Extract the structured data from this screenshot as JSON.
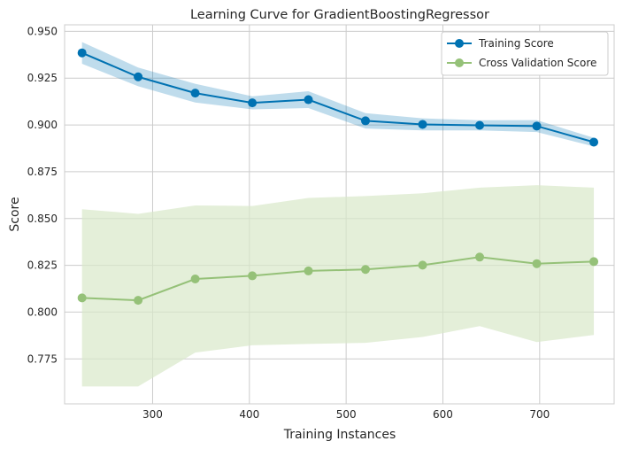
{
  "chart_data": {
    "type": "line",
    "title": "Learning Curve for GradientBoostingRegressor",
    "xlabel": "Training Instances",
    "ylabel": "Score",
    "xlim": [
      209,
      777
    ],
    "ylim": [
      0.751,
      0.9535
    ],
    "xticks": [
      300,
      400,
      500,
      600,
      700
    ],
    "yticks": [
      0.775,
      0.8,
      0.825,
      0.85,
      0.875,
      0.9,
      0.925,
      0.95
    ],
    "ytick_labels": [
      "0.775",
      "0.800",
      "0.825",
      "0.850",
      "0.875",
      "0.900",
      "0.925",
      "0.950"
    ],
    "grid": true,
    "legend_position": "top-right",
    "x": [
      227,
      285,
      344,
      403,
      461,
      520,
      579,
      638,
      697,
      756
    ],
    "series": [
      {
        "name": "Training Score",
        "color": "#0072b2",
        "band_color": "#0072b2",
        "values": [
          0.9385,
          0.9257,
          0.917,
          0.9118,
          0.9135,
          0.9022,
          0.9003,
          0.8998,
          0.8994,
          0.8908
        ],
        "upper": [
          0.9443,
          0.9307,
          0.922,
          0.9153,
          0.918,
          0.9063,
          0.9035,
          0.9025,
          0.9026,
          0.8931
        ],
        "lower": [
          0.9327,
          0.9207,
          0.912,
          0.9083,
          0.909,
          0.8981,
          0.8971,
          0.8971,
          0.8962,
          0.8885
        ]
      },
      {
        "name": "Cross Validation Score",
        "color": "#95c178",
        "band_color": "#d9e8c9",
        "values": [
          0.8076,
          0.8063,
          0.8177,
          0.8194,
          0.822,
          0.8228,
          0.8251,
          0.8294,
          0.8259,
          0.827
        ],
        "upper": [
          0.855,
          0.8525,
          0.857,
          0.8567,
          0.861,
          0.862,
          0.8635,
          0.8665,
          0.8678,
          0.8665
        ],
        "lower": [
          0.7603,
          0.7603,
          0.7784,
          0.7823,
          0.783,
          0.7836,
          0.7867,
          0.7925,
          0.784,
          0.7878
        ]
      }
    ]
  }
}
